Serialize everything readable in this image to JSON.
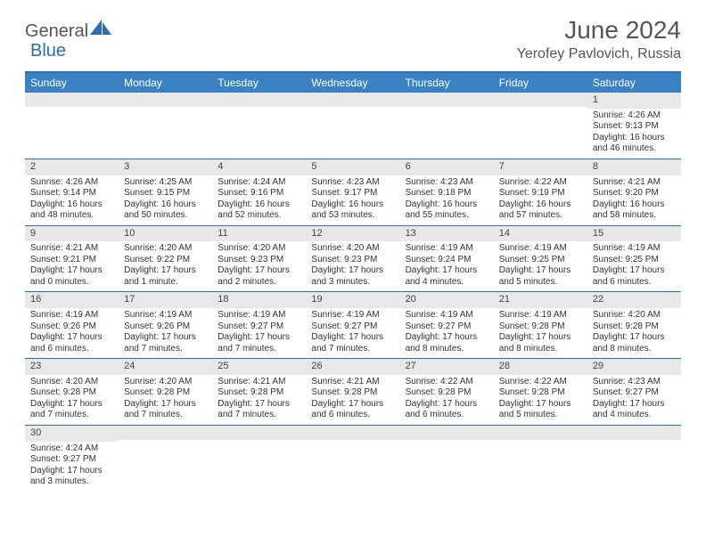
{
  "brand": {
    "part1": "General",
    "part2": "Blue"
  },
  "title": "June 2024",
  "location": "Yerofey Pavlovich, Russia",
  "colors": {
    "header_bg": "#3b82c4",
    "border": "#2a6db0",
    "daynum_bg": "#e8e8e8",
    "text": "#333333",
    "title_text": "#555555"
  },
  "day_names": [
    "Sunday",
    "Monday",
    "Tuesday",
    "Wednesday",
    "Thursday",
    "Friday",
    "Saturday"
  ],
  "weeks": [
    [
      null,
      null,
      null,
      null,
      null,
      null,
      {
        "n": "1",
        "sunrise": "Sunrise: 4:26 AM",
        "sunset": "Sunset: 9:13 PM",
        "daylight": "Daylight: 16 hours and 46 minutes."
      }
    ],
    [
      {
        "n": "2",
        "sunrise": "Sunrise: 4:26 AM",
        "sunset": "Sunset: 9:14 PM",
        "daylight": "Daylight: 16 hours and 48 minutes."
      },
      {
        "n": "3",
        "sunrise": "Sunrise: 4:25 AM",
        "sunset": "Sunset: 9:15 PM",
        "daylight": "Daylight: 16 hours and 50 minutes."
      },
      {
        "n": "4",
        "sunrise": "Sunrise: 4:24 AM",
        "sunset": "Sunset: 9:16 PM",
        "daylight": "Daylight: 16 hours and 52 minutes."
      },
      {
        "n": "5",
        "sunrise": "Sunrise: 4:23 AM",
        "sunset": "Sunset: 9:17 PM",
        "daylight": "Daylight: 16 hours and 53 minutes."
      },
      {
        "n": "6",
        "sunrise": "Sunrise: 4:23 AM",
        "sunset": "Sunset: 9:18 PM",
        "daylight": "Daylight: 16 hours and 55 minutes."
      },
      {
        "n": "7",
        "sunrise": "Sunrise: 4:22 AM",
        "sunset": "Sunset: 9:19 PM",
        "daylight": "Daylight: 16 hours and 57 minutes."
      },
      {
        "n": "8",
        "sunrise": "Sunrise: 4:21 AM",
        "sunset": "Sunset: 9:20 PM",
        "daylight": "Daylight: 16 hours and 58 minutes."
      }
    ],
    [
      {
        "n": "9",
        "sunrise": "Sunrise: 4:21 AM",
        "sunset": "Sunset: 9:21 PM",
        "daylight": "Daylight: 17 hours and 0 minutes."
      },
      {
        "n": "10",
        "sunrise": "Sunrise: 4:20 AM",
        "sunset": "Sunset: 9:22 PM",
        "daylight": "Daylight: 17 hours and 1 minute."
      },
      {
        "n": "11",
        "sunrise": "Sunrise: 4:20 AM",
        "sunset": "Sunset: 9:23 PM",
        "daylight": "Daylight: 17 hours and 2 minutes."
      },
      {
        "n": "12",
        "sunrise": "Sunrise: 4:20 AM",
        "sunset": "Sunset: 9:23 PM",
        "daylight": "Daylight: 17 hours and 3 minutes."
      },
      {
        "n": "13",
        "sunrise": "Sunrise: 4:19 AM",
        "sunset": "Sunset: 9:24 PM",
        "daylight": "Daylight: 17 hours and 4 minutes."
      },
      {
        "n": "14",
        "sunrise": "Sunrise: 4:19 AM",
        "sunset": "Sunset: 9:25 PM",
        "daylight": "Daylight: 17 hours and 5 minutes."
      },
      {
        "n": "15",
        "sunrise": "Sunrise: 4:19 AM",
        "sunset": "Sunset: 9:25 PM",
        "daylight": "Daylight: 17 hours and 6 minutes."
      }
    ],
    [
      {
        "n": "16",
        "sunrise": "Sunrise: 4:19 AM",
        "sunset": "Sunset: 9:26 PM",
        "daylight": "Daylight: 17 hours and 6 minutes."
      },
      {
        "n": "17",
        "sunrise": "Sunrise: 4:19 AM",
        "sunset": "Sunset: 9:26 PM",
        "daylight": "Daylight: 17 hours and 7 minutes."
      },
      {
        "n": "18",
        "sunrise": "Sunrise: 4:19 AM",
        "sunset": "Sunset: 9:27 PM",
        "daylight": "Daylight: 17 hours and 7 minutes."
      },
      {
        "n": "19",
        "sunrise": "Sunrise: 4:19 AM",
        "sunset": "Sunset: 9:27 PM",
        "daylight": "Daylight: 17 hours and 7 minutes."
      },
      {
        "n": "20",
        "sunrise": "Sunrise: 4:19 AM",
        "sunset": "Sunset: 9:27 PM",
        "daylight": "Daylight: 17 hours and 8 minutes."
      },
      {
        "n": "21",
        "sunrise": "Sunrise: 4:19 AM",
        "sunset": "Sunset: 9:28 PM",
        "daylight": "Daylight: 17 hours and 8 minutes."
      },
      {
        "n": "22",
        "sunrise": "Sunrise: 4:20 AM",
        "sunset": "Sunset: 9:28 PM",
        "daylight": "Daylight: 17 hours and 8 minutes."
      }
    ],
    [
      {
        "n": "23",
        "sunrise": "Sunrise: 4:20 AM",
        "sunset": "Sunset: 9:28 PM",
        "daylight": "Daylight: 17 hours and 7 minutes."
      },
      {
        "n": "24",
        "sunrise": "Sunrise: 4:20 AM",
        "sunset": "Sunset: 9:28 PM",
        "daylight": "Daylight: 17 hours and 7 minutes."
      },
      {
        "n": "25",
        "sunrise": "Sunrise: 4:21 AM",
        "sunset": "Sunset: 9:28 PM",
        "daylight": "Daylight: 17 hours and 7 minutes."
      },
      {
        "n": "26",
        "sunrise": "Sunrise: 4:21 AM",
        "sunset": "Sunset: 9:28 PM",
        "daylight": "Daylight: 17 hours and 6 minutes."
      },
      {
        "n": "27",
        "sunrise": "Sunrise: 4:22 AM",
        "sunset": "Sunset: 9:28 PM",
        "daylight": "Daylight: 17 hours and 6 minutes."
      },
      {
        "n": "28",
        "sunrise": "Sunrise: 4:22 AM",
        "sunset": "Sunset: 9:28 PM",
        "daylight": "Daylight: 17 hours and 5 minutes."
      },
      {
        "n": "29",
        "sunrise": "Sunrise: 4:23 AM",
        "sunset": "Sunset: 9:27 PM",
        "daylight": "Daylight: 17 hours and 4 minutes."
      }
    ],
    [
      {
        "n": "30",
        "sunrise": "Sunrise: 4:24 AM",
        "sunset": "Sunset: 9:27 PM",
        "daylight": "Daylight: 17 hours and 3 minutes."
      },
      null,
      null,
      null,
      null,
      null,
      null
    ]
  ]
}
